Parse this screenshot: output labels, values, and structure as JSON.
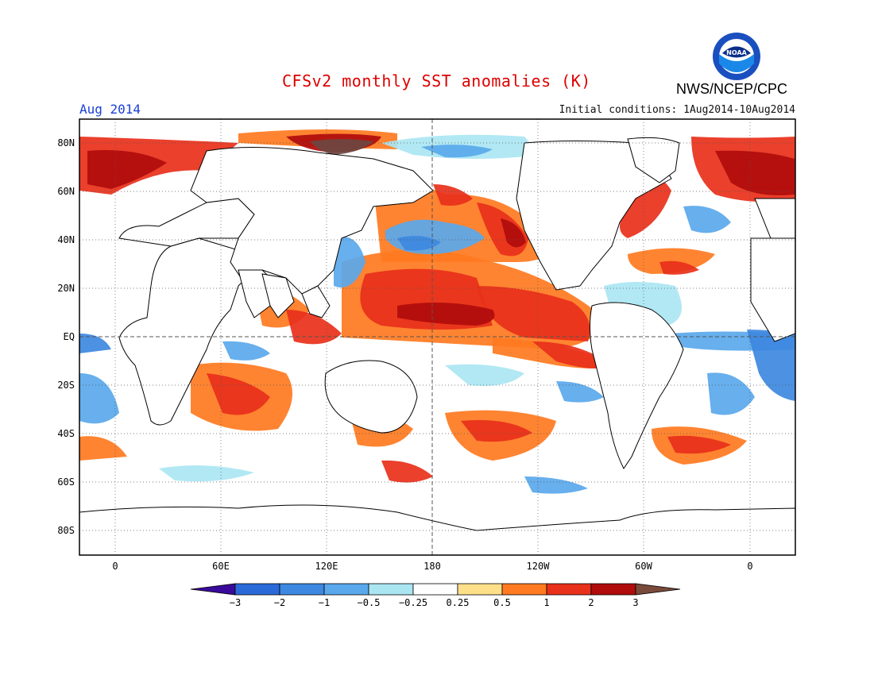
{
  "title": "CFSv2 monthly SST anomalies (K)",
  "agency": "NWS/NCEP/CPC",
  "logo_text": "NOAA",
  "month_label": "Aug 2014",
  "initial_conditions": "Initial conditions: 1Aug2014-10Aug2014",
  "map": {
    "lat_labels": [
      "80N",
      "60N",
      "40N",
      "20N",
      "EQ",
      "20S",
      "40S",
      "60S",
      "80S"
    ],
    "lon_labels": [
      "0",
      "60E",
      "120E",
      "180",
      "120W",
      "60W",
      "0"
    ],
    "gridlines": "dotted",
    "equator_and_dateline": "dashed"
  },
  "colorbar": {
    "tick_labels": [
      "-3",
      "-2",
      "-1",
      "-0.5",
      "-0.25",
      "0.25",
      "0.5",
      "1",
      "2",
      "3"
    ],
    "colors": [
      "#3a0a9a",
      "#2a6ad8",
      "#3d88e0",
      "#5aa8ec",
      "#aae6f2",
      "#ffffff",
      "#ffe08a",
      "#ff7a20",
      "#e8301a",
      "#b00c0c",
      "#7a4a3a"
    ]
  },
  "palette": {
    "neg3": "#3a0a9a",
    "neg2": "#2a6ad8",
    "neg1": "#3d88e0",
    "neg05": "#5aa8ec",
    "neg025": "#aae6f2",
    "pos025": "#ffe08a",
    "pos05": "#ff7a20",
    "pos1": "#e8301a",
    "pos2": "#b00c0c",
    "pos3": "#6e4640",
    "land": "#ffffff"
  }
}
